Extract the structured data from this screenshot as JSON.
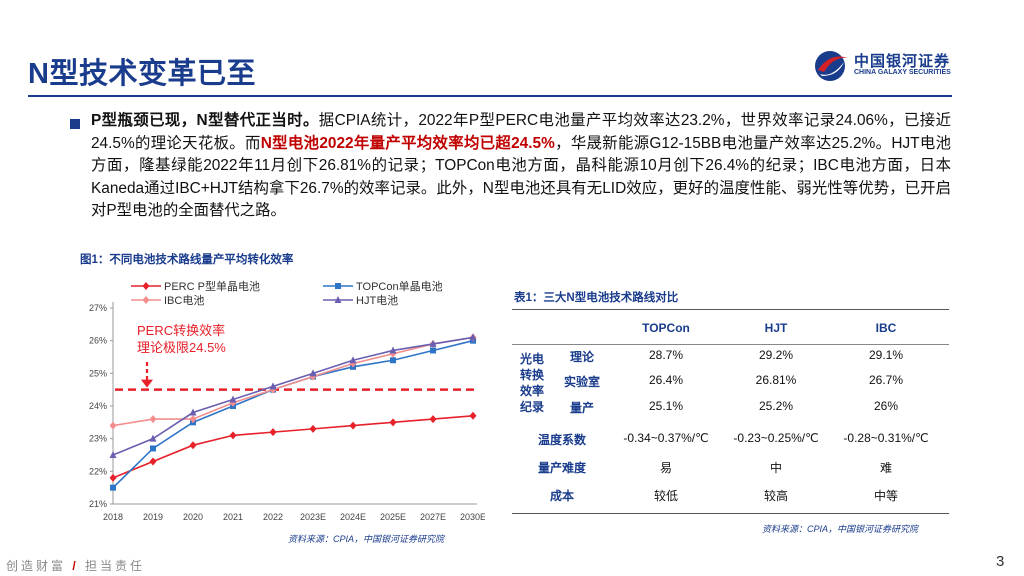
{
  "header": {
    "title": "N型技术变革已至",
    "logo_cn": "中国银河证券",
    "logo_en": "CHINA GALAXY SECURITIES"
  },
  "colors": {
    "brand_blue": "#1a3c8c",
    "accent_red": "#c00000"
  },
  "paragraph": {
    "lead": "P型瓶颈已现，N型替代正当时。",
    "text1": "据CPIA统计，2022年P型PERC电池量产平均效率达23.2%，世界效率记录24.06%，已接近24.5%的理论天花板。而",
    "highlight": "N型电池2022年量产平均效率均已超24.5%",
    "text2": "，华晟新能源G12-15BB电池量产效率达25.2%。HJT电池方面，隆基绿能2022年11月创下26.81%的记录；TOPCon电池方面，晶科能源10月创下26.4%的纪录；IBC电池方面，日本Kaneda通过IBC+HJT结构拿下26.7%的效率记录。此外，N型电池还具有无LID效应，更好的温度性能、弱光性等优势，已开启对P型电池的全面替代之路。"
  },
  "figure": {
    "title": "图1：不同电池技术路线量产平均转化效率",
    "source": "资料来源：CPIA，中国银河证券研究院"
  },
  "chart_data": {
    "type": "line",
    "x": [
      "2018",
      "2019",
      "2020",
      "2021",
      "2022",
      "2023E",
      "2024E",
      "2025E",
      "2027E",
      "2030E"
    ],
    "ylim": [
      21,
      27
    ],
    "y_ticks": [
      "27%",
      "26%",
      "25%",
      "24%",
      "23%",
      "22%",
      "21%"
    ],
    "series": [
      {
        "name": "PERC P型单晶电池",
        "color": "#e8202a",
        "marker": "diamond",
        "values": [
          21.8,
          22.3,
          22.8,
          23.1,
          23.2,
          23.3,
          23.4,
          23.5,
          23.6,
          23.7
        ]
      },
      {
        "name": "TOPCon单晶电池",
        "color": "#2e75c8",
        "marker": "square",
        "values": [
          21.5,
          22.7,
          23.5,
          24.0,
          24.5,
          24.9,
          25.2,
          25.4,
          25.7,
          26.0
        ]
      },
      {
        "name": "IBC电池",
        "color": "#f28e8e",
        "marker": "diamond",
        "values": [
          23.4,
          23.6,
          23.6,
          24.1,
          24.5,
          24.9,
          25.3,
          25.6,
          25.9,
          26.1
        ]
      },
      {
        "name": "HJT电池",
        "color": "#6a5fb0",
        "marker": "triangle",
        "values": [
          22.5,
          23.0,
          23.8,
          24.2,
          24.6,
          25.0,
          25.4,
          25.7,
          25.9,
          26.1
        ]
      }
    ],
    "reference_line": {
      "value": 24.5,
      "color": "#e8202a"
    },
    "annotation": [
      "PERC转换效率",
      "理论极限24.5%"
    ]
  },
  "table": {
    "title": "表1：三大N型电池技术路线对比",
    "columns": [
      "TOPCon",
      "HJT",
      "IBC"
    ],
    "group_label": [
      "光电",
      "转换",
      "效率",
      "纪录"
    ],
    "rows": [
      {
        "label": "理论",
        "values": [
          "28.7%",
          "29.2%",
          "29.1%"
        ]
      },
      {
        "label": "实验室",
        "values": [
          "26.4%",
          "26.81%",
          "26.7%"
        ]
      },
      {
        "label": "量产",
        "values": [
          "25.1%",
          "25.2%",
          "26%"
        ]
      },
      {
        "label": "温度系数",
        "values": [
          "-0.34~0.37%/℃",
          "-0.23~0.25%/℃",
          "-0.28~0.31%/℃"
        ]
      },
      {
        "label": "量产难度",
        "values": [
          "易",
          "中",
          "难"
        ]
      },
      {
        "label": "成本",
        "values": [
          "较低",
          "较高",
          "中等"
        ]
      }
    ],
    "source": "资料来源：CPIA，中国银河证券研究院"
  },
  "footer": {
    "left1": "创造财富",
    "slash": "/",
    "left2": "担当责任",
    "page": "3"
  }
}
